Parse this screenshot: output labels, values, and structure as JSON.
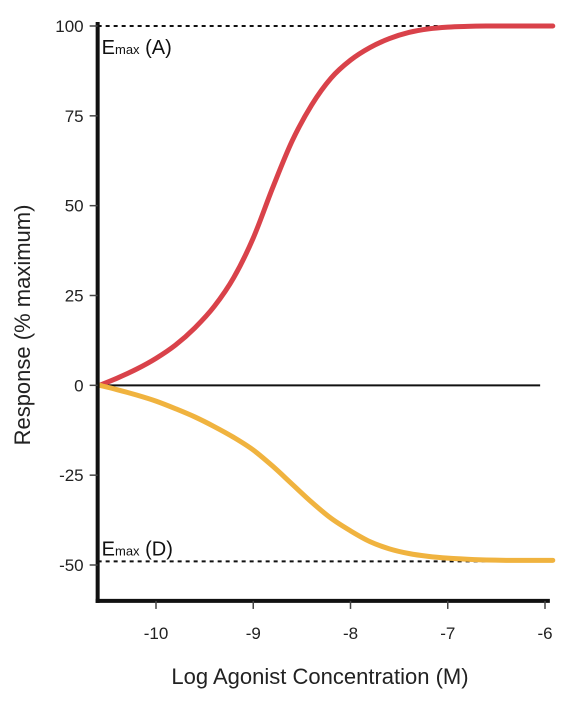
{
  "chart_data": {
    "type": "line",
    "title": "",
    "xlabel": "Log Agonist Concentration (M)",
    "ylabel": "Response (% maximum)",
    "xlim": [
      -10.6,
      -5.95
    ],
    "ylim": [
      -60,
      102
    ],
    "x_ticks": [
      -10,
      -9,
      -8,
      -7,
      -6
    ],
    "x_tick_labels": [
      "-10",
      "-9",
      "-8",
      "-7",
      "-6"
    ],
    "y_ticks": [
      100,
      75,
      50,
      25,
      0,
      -25,
      -50
    ],
    "y_tick_labels": [
      "100",
      "75",
      "50",
      "25",
      "0",
      "-25",
      "-50"
    ],
    "grid": false,
    "legend": "none",
    "series": [
      {
        "color": "#d9424a",
        "x": [
          -10.58,
          -10.4,
          -10.2,
          -10.0,
          -9.8,
          -9.6,
          -9.4,
          -9.2,
          -9.0,
          -8.8,
          -8.6,
          -8.4,
          -8.2,
          -8.0,
          -7.8,
          -7.6,
          -7.4,
          -7.2,
          -7.0,
          -6.8,
          -6.6,
          -6.4,
          -6.2,
          -6.0,
          -5.92
        ],
        "y": [
          0.0,
          2.0,
          4.5,
          7.5,
          11.2,
          16.0,
          22.0,
          30.0,
          41.0,
          55.0,
          68.0,
          78.0,
          85.5,
          90.5,
          94.0,
          96.5,
          98.2,
          99.2,
          99.7,
          99.9,
          100.0,
          100.0,
          100.0,
          100.0,
          100.0
        ]
      },
      {
        "color": "#f0b33f",
        "x": [
          -10.58,
          -10.4,
          -10.2,
          -10.0,
          -9.8,
          -9.6,
          -9.4,
          -9.2,
          -9.0,
          -8.8,
          -8.6,
          -8.4,
          -8.2,
          -8.0,
          -7.8,
          -7.6,
          -7.4,
          -7.2,
          -7.0,
          -6.8,
          -6.6,
          -6.4,
          -6.2,
          -6.0,
          -5.92
        ],
        "y": [
          0.0,
          -1.2,
          -2.7,
          -4.4,
          -6.5,
          -8.8,
          -11.5,
          -14.5,
          -18.0,
          -22.5,
          -27.5,
          -32.5,
          -37.0,
          -40.5,
          -43.5,
          -45.5,
          -46.8,
          -47.6,
          -48.1,
          -48.4,
          -48.6,
          -48.7,
          -48.7,
          -48.7,
          -48.7
        ]
      }
    ],
    "reference_lines": [
      {
        "y": 0,
        "style": "solid",
        "x_end": -6.05
      },
      {
        "y": 100,
        "style": "dashed"
      },
      {
        "y": -49,
        "style": "dashed"
      }
    ],
    "annotations": [
      {
        "text": "E",
        "sub": "max",
        "suffix": " (A)",
        "x": -10.6,
        "y": 100
      },
      {
        "text": "E",
        "sub": "max",
        "suffix": " (D)",
        "x": -10.6,
        "y": -49
      }
    ]
  }
}
